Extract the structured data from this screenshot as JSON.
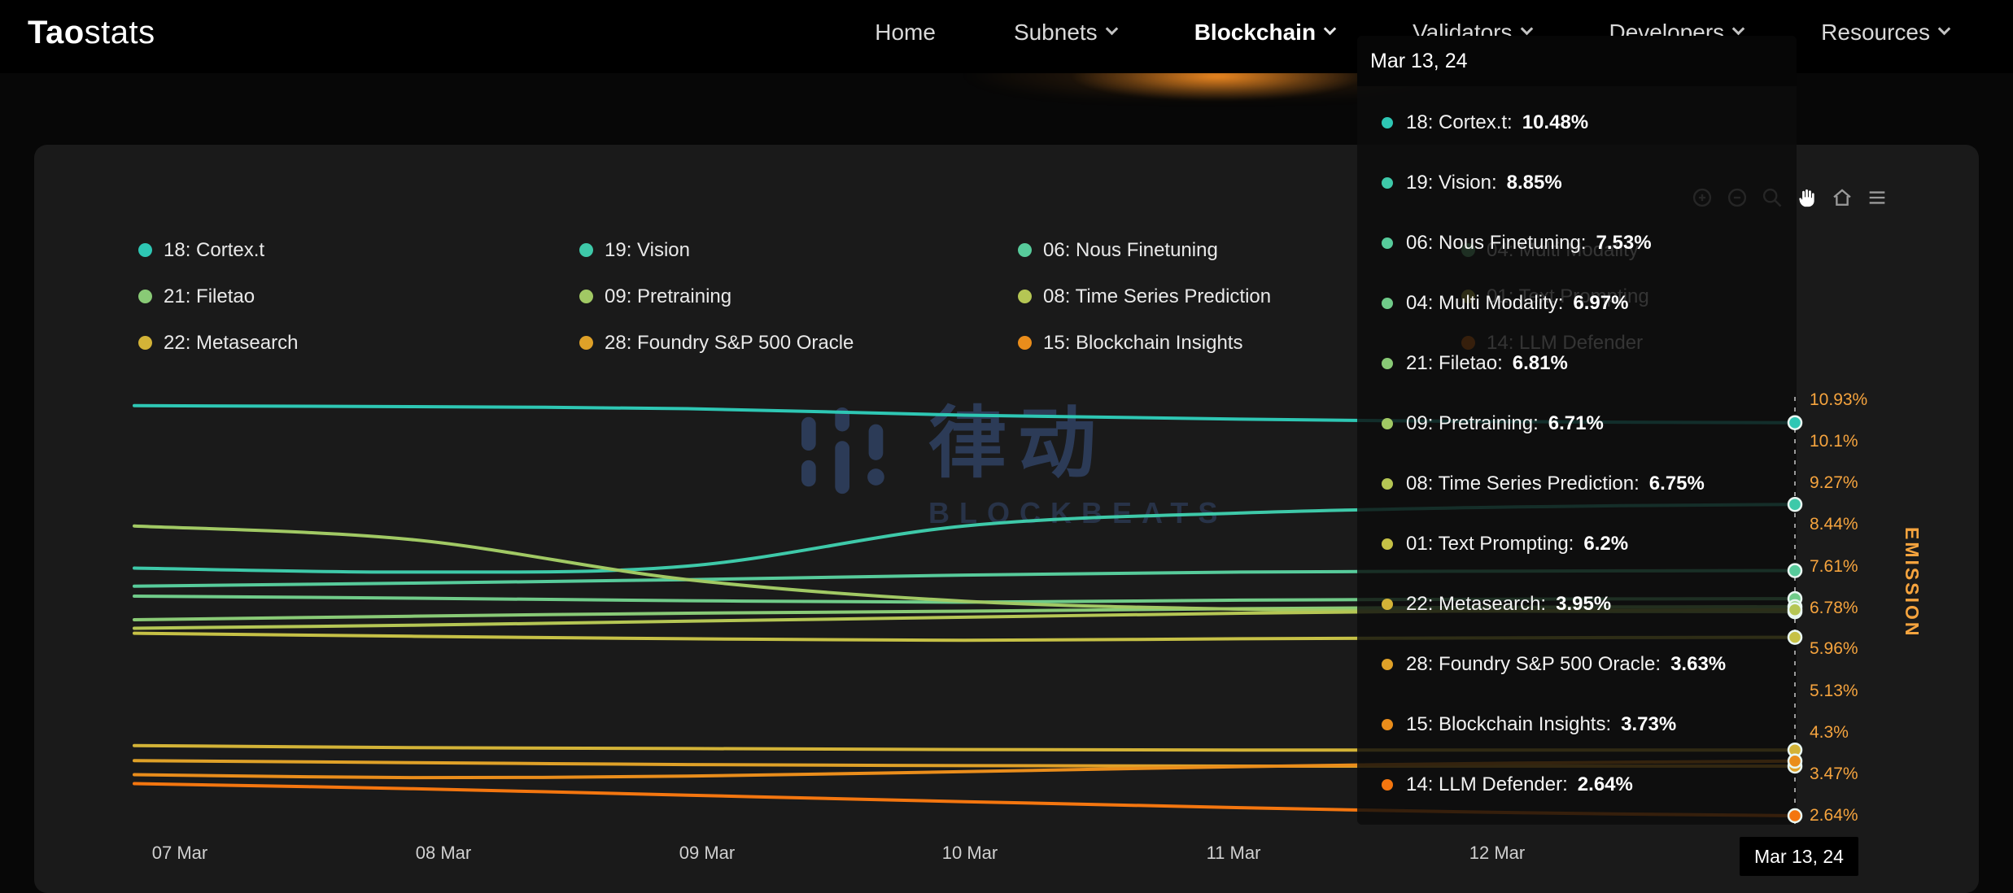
{
  "brand": {
    "name_bold": "Tao",
    "name_light": "stats"
  },
  "nav": {
    "items": [
      {
        "label": "Home",
        "chevron": false,
        "active": false
      },
      {
        "label": "Subnets",
        "chevron": true,
        "active": false
      },
      {
        "label": "Blockchain",
        "chevron": true,
        "active": true
      },
      {
        "label": "Validators",
        "chevron": true,
        "active": false
      },
      {
        "label": "Developers",
        "chevron": true,
        "active": false
      },
      {
        "label": "Resources",
        "chevron": true,
        "active": false
      }
    ]
  },
  "watermark": {
    "cjk": "律动",
    "latin": "BLOCKBEATS"
  },
  "toolbar": {
    "icons": [
      {
        "name": "zoom-in-icon",
        "active": false
      },
      {
        "name": "zoom-out-icon",
        "active": false
      },
      {
        "name": "zoom-box-icon",
        "active": false
      },
      {
        "name": "pan-icon",
        "active": true
      },
      {
        "name": "reset-home-icon",
        "active": false
      },
      {
        "name": "menu-icon",
        "active": false
      }
    ]
  },
  "legend": {
    "items": [
      {
        "label": "18: Cortex.t",
        "color": "#2ec7b4"
      },
      {
        "label": "19: Vision",
        "color": "#3ec9a9"
      },
      {
        "label": "06: Nous Finetuning",
        "color": "#57cb9b"
      },
      {
        "label": "04: Multi Modality",
        "color": "#70cb89"
      },
      {
        "label": "21: Filetao",
        "color": "#89ca76"
      },
      {
        "label": "09: Pretraining",
        "color": "#a1c964"
      },
      {
        "label": "08: Time Series Prediction",
        "color": "#b5c654"
      },
      {
        "label": "01: Text Prompting",
        "color": "#c6c146"
      },
      {
        "label": "22: Metasearch",
        "color": "#d3b337"
      },
      {
        "label": "28: Foundry S&P 500 Oracle",
        "color": "#dfa128"
      },
      {
        "label": "15: Blockchain Insights",
        "color": "#ea8d1b"
      },
      {
        "label": "14: LLM Defender",
        "color": "#f4760f"
      }
    ]
  },
  "tooltip": {
    "date": "Mar 13, 24",
    "rows": [
      {
        "label": "18: Cortex.t:",
        "value": "10.48%",
        "color": "#2ec7b4"
      },
      {
        "label": "19: Vision:",
        "value": "8.85%",
        "color": "#3ec9a9"
      },
      {
        "label": "06: Nous Finetuning:",
        "value": "7.53%",
        "color": "#57cb9b"
      },
      {
        "label": "04: Multi Modality:",
        "value": "6.97%",
        "color": "#70cb89"
      },
      {
        "label": "21: Filetao:",
        "value": "6.81%",
        "color": "#89ca76"
      },
      {
        "label": "09: Pretraining:",
        "value": "6.71%",
        "color": "#a1c964"
      },
      {
        "label": "08: Time Series Prediction:",
        "value": "6.75%",
        "color": "#b5c654"
      },
      {
        "label": "01: Text Prompting:",
        "value": "6.2%",
        "color": "#c6c146"
      },
      {
        "label": "22: Metasearch:",
        "value": "3.95%",
        "color": "#d3b337"
      },
      {
        "label": "28: Foundry S&P 500 Oracle:",
        "value": "3.63%",
        "color": "#dfa128"
      },
      {
        "label": "15: Blockchain Insights:",
        "value": "3.73%",
        "color": "#ea8d1b"
      },
      {
        "label": "14: LLM Defender:",
        "value": "2.64%",
        "color": "#f4760f"
      }
    ]
  },
  "chart_data": {
    "type": "line",
    "title": "",
    "xlabel": "",
    "ylabel": "EMISSION",
    "grid": false,
    "legend_position": "top",
    "x": [
      "07 Mar",
      "08 Mar",
      "09 Mar",
      "10 Mar",
      "11 Mar",
      "12 Mar",
      "13 Mar"
    ],
    "x_ticks": [
      "07 Mar",
      "08 Mar",
      "09 Mar",
      "10 Mar",
      "11 Mar",
      "12 Mar"
    ],
    "crosshair_label": "Mar 13, 24",
    "crosshair_x": "13 Mar",
    "y_axis_labels": [
      "10.93%",
      "10.1%",
      "9.27%",
      "8.44%",
      "7.61%",
      "6.78%",
      "5.96%",
      "5.13%",
      "4.3%",
      "3.47%",
      "2.64%"
    ],
    "ylim": [
      2.64,
      10.93
    ],
    "unit": "%",
    "series": [
      {
        "name": "18: Cortex.t",
        "color": "#2ec7b4",
        "values": [
          10.82,
          10.8,
          10.76,
          10.63,
          10.55,
          10.5,
          10.48
        ]
      },
      {
        "name": "19: Vision",
        "color": "#3ec9a9",
        "values": [
          7.58,
          7.5,
          7.62,
          8.42,
          8.68,
          8.8,
          8.85
        ]
      },
      {
        "name": "06: Nous Finetuning",
        "color": "#57cb9b",
        "values": [
          7.22,
          7.28,
          7.35,
          7.44,
          7.5,
          7.52,
          7.53
        ]
      },
      {
        "name": "04: Multi Modality",
        "color": "#70cb89",
        "values": [
          7.02,
          6.98,
          6.93,
          6.9,
          6.94,
          6.96,
          6.97
        ]
      },
      {
        "name": "21: Filetao",
        "color": "#89ca76",
        "values": [
          6.55,
          6.62,
          6.68,
          6.72,
          6.77,
          6.8,
          6.81
        ]
      },
      {
        "name": "09: Pretraining",
        "color": "#a1c964",
        "values": [
          8.42,
          8.15,
          7.35,
          6.92,
          6.76,
          6.72,
          6.71
        ]
      },
      {
        "name": "08: Time Series Prediction",
        "color": "#b5c654",
        "values": [
          6.38,
          6.44,
          6.52,
          6.6,
          6.68,
          6.73,
          6.75
        ]
      },
      {
        "name": "01: Text Prompting",
        "color": "#c6c146",
        "values": [
          6.28,
          6.22,
          6.17,
          6.14,
          6.17,
          6.19,
          6.2
        ]
      },
      {
        "name": "22: Metasearch",
        "color": "#d3b337",
        "values": [
          4.04,
          4.0,
          3.98,
          3.96,
          3.95,
          3.95,
          3.95
        ]
      },
      {
        "name": "28: Foundry S&P 500 Oracle",
        "color": "#dfa128",
        "values": [
          3.74,
          3.7,
          3.66,
          3.64,
          3.63,
          3.63,
          3.63
        ]
      },
      {
        "name": "15: Blockchain Insights",
        "color": "#ea8d1b",
        "values": [
          3.46,
          3.4,
          3.43,
          3.52,
          3.62,
          3.69,
          3.73
        ]
      },
      {
        "name": "14: LLM Defender",
        "color": "#f4760f",
        "values": [
          3.28,
          3.18,
          3.05,
          2.92,
          2.8,
          2.7,
          2.64
        ]
      }
    ]
  },
  "theme": {
    "accent_orange": "#f08c22",
    "axis_label_orange": "#f6a43e",
    "card_bg": "#1a1a1a",
    "page_bg": "#070707",
    "tooltip_bg": "rgba(12,12,12,0.82)"
  }
}
